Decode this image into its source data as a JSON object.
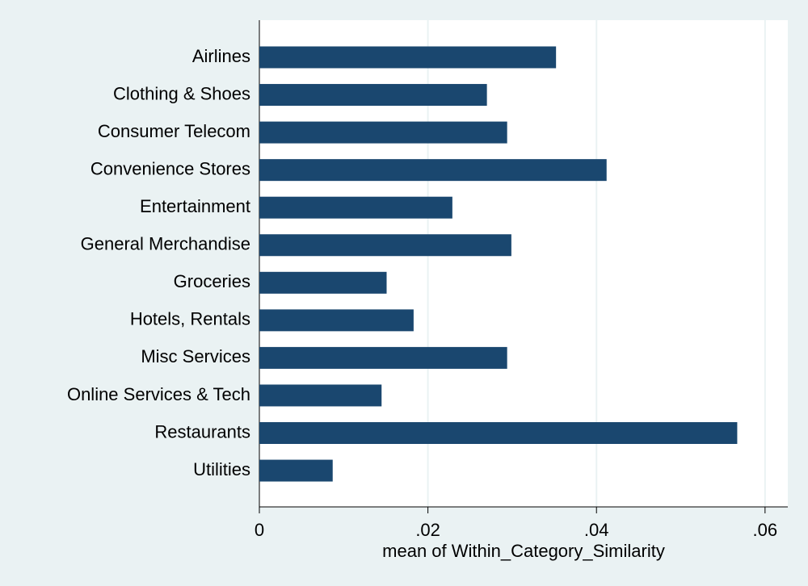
{
  "chart_data": {
    "type": "bar",
    "orientation": "horizontal",
    "x_label": "mean of Within_Category_Similarity",
    "categories": [
      "Airlines",
      "Clothing & Shoes",
      "Consumer Telecom",
      "Convenience Stores",
      "Entertainment",
      "General Merchandise",
      "Groceries",
      "Hotels, Rentals",
      "Misc Services",
      "Online Services & Tech",
      "Restaurants",
      "Utilities"
    ],
    "values": [
      0.0352,
      0.027,
      0.0294,
      0.0412,
      0.0229,
      0.0299,
      0.0151,
      0.0183,
      0.0294,
      0.0145,
      0.0567,
      0.0087
    ],
    "color": "#1a476f",
    "xlim": [
      0,
      0.0627
    ],
    "xticks": [
      0,
      {
        "value": 0.02,
        "label": ".02"
      },
      {
        "value": 0.04,
        "label": ".04"
      },
      {
        "value": 0.06,
        "label": ".06"
      }
    ],
    "grid": true
  }
}
